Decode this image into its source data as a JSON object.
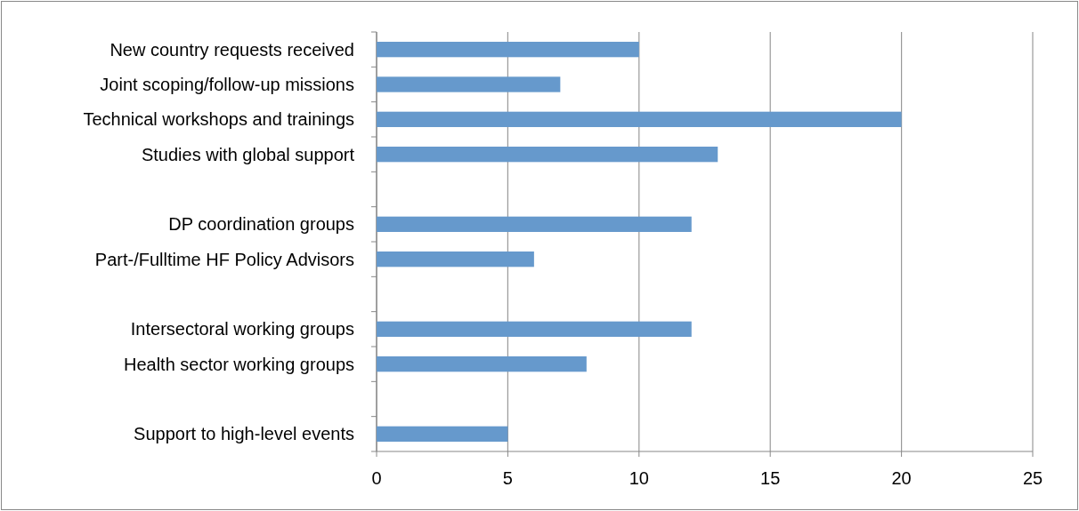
{
  "chart_data": {
    "type": "bar",
    "orientation": "horizontal",
    "categories": [
      "New country requests received",
      "Joint scoping/follow-up missions",
      "Technical workshops and trainings",
      "Studies with global support",
      null,
      "DP coordination groups",
      "Part-/Fulltime HF Policy Advisors",
      null,
      "Intersectoral working groups",
      "Health sector working groups",
      null,
      "Support to high-level events"
    ],
    "values": [
      10,
      7,
      20,
      13,
      null,
      12,
      6,
      null,
      12,
      8,
      null,
      5
    ],
    "color": "#6699cc",
    "xlim": [
      0,
      25
    ],
    "xticks": [
      0,
      5,
      10,
      15,
      20,
      25
    ],
    "grid": "x"
  }
}
